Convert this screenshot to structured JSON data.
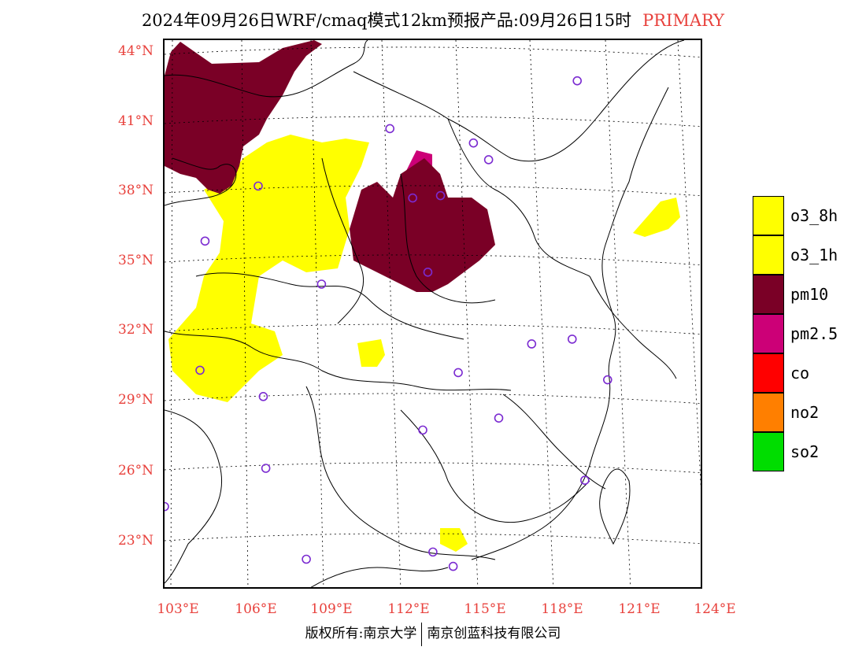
{
  "title": {
    "main": "2024年09月26日WRF/cmaq模式12km预报产品:09月26日15时",
    "tag": "PRIMARY"
  },
  "axes": {
    "lat_labels": [
      "44°N",
      "41°N",
      "38°N",
      "35°N",
      "32°N",
      "29°N",
      "26°N",
      "23°N"
    ],
    "lon_labels": [
      "103°E",
      "106°E",
      "109°E",
      "112°E",
      "115°E",
      "118°E",
      "121°E",
      "124°E"
    ]
  },
  "legend": {
    "items": [
      {
        "label": "o3_8h",
        "color": "#ffff00"
      },
      {
        "label": "o3_1h",
        "color": "#ffff00"
      },
      {
        "label": "pm10",
        "color": "#7a0026"
      },
      {
        "label": "pm2.5",
        "color": "#cc0077"
      },
      {
        "label": "co",
        "color": "#ff0000"
      },
      {
        "label": "no2",
        "color": "#ff7f00"
      },
      {
        "label": "so2",
        "color": "#00dd00"
      }
    ]
  },
  "footer": {
    "left": "版权所有:南京大学",
    "right": "南京创蓝科技有限公司"
  },
  "colors": {
    "label_red": "#e8413c",
    "ozone": "#ffff00",
    "pm10": "#7a0026",
    "pm25": "#cc0077",
    "station_circle": "#7b2bd1"
  },
  "stations": [
    {
      "lon": 119.0,
      "lat": 42.8
    },
    {
      "lon": 111.6,
      "lat": 40.8
    },
    {
      "lon": 114.9,
      "lat": 40.2
    },
    {
      "lon": 115.5,
      "lat": 39.5
    },
    {
      "lon": 106.4,
      "lat": 38.4
    },
    {
      "lon": 112.5,
      "lat": 37.9
    },
    {
      "lon": 113.6,
      "lat": 38.0
    },
    {
      "lon": 104.3,
      "lat": 36.1
    },
    {
      "lon": 113.1,
      "lat": 34.8
    },
    {
      "lon": 108.9,
      "lat": 34.3
    },
    {
      "lon": 117.2,
      "lat": 31.8
    },
    {
      "lon": 118.8,
      "lat": 32.0
    },
    {
      "lon": 114.3,
      "lat": 30.6
    },
    {
      "lon": 120.2,
      "lat": 30.3
    },
    {
      "lon": 106.6,
      "lat": 29.6
    },
    {
      "lon": 104.1,
      "lat": 30.7
    },
    {
      "lon": 112.9,
      "lat": 28.2
    },
    {
      "lon": 115.9,
      "lat": 28.7
    },
    {
      "lon": 119.3,
      "lat": 26.1
    },
    {
      "lon": 106.7,
      "lat": 26.6
    },
    {
      "lon": 102.7,
      "lat": 25.0
    },
    {
      "lon": 108.3,
      "lat": 22.8
    },
    {
      "lon": 113.3,
      "lat": 23.1
    },
    {
      "lon": 114.1,
      "lat": 22.5
    }
  ]
}
